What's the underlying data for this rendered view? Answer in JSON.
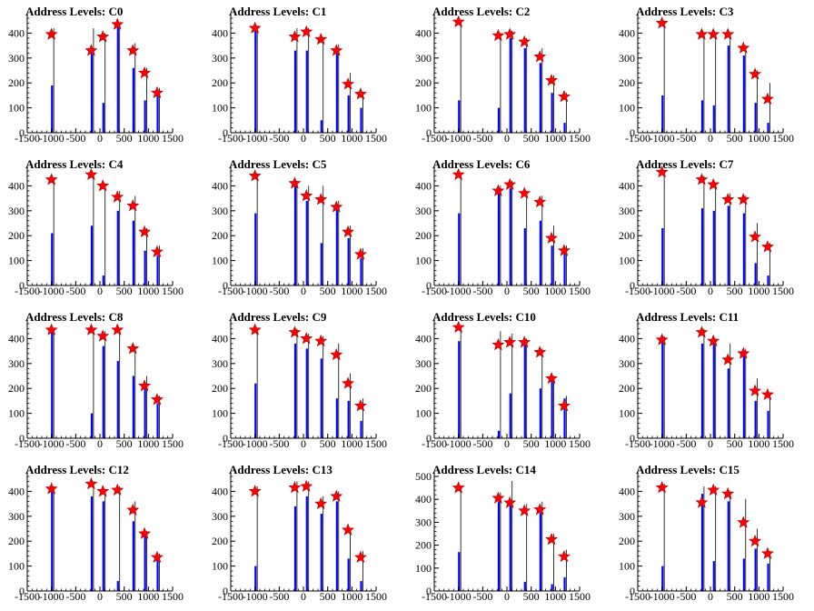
{
  "chart_data": [
    {
      "type": "bar",
      "title": "Address Levels: C0",
      "xlim": [
        -1500,
        1500
      ],
      "ylim": [
        0,
        460
      ],
      "xticks": [
        -1500,
        -1000,
        -500,
        0,
        500,
        1000,
        1500
      ],
      "yticks": [
        0,
        100,
        200,
        300,
        400
      ],
      "xtick_labels": [
        "-1500",
        "-1000",
        "-500",
        "0",
        "500",
        "1000",
        "1500"
      ],
      "ytick_labels": [
        "0",
        "100",
        "200",
        "300",
        "400"
      ],
      "peaks_x": [
        -1000,
        -180,
        60,
        360,
        680,
        920,
        1180
      ],
      "bar_values": [
        190,
        330,
        120,
        430,
        260,
        130,
        170
      ],
      "line_values": [
        420,
        420,
        400,
        440,
        360,
        260,
        180
      ],
      "marker_values": [
        395,
        330,
        385,
        435,
        330,
        240,
        160
      ]
    },
    {
      "type": "bar",
      "title": "Address Levels: C1",
      "xlim": [
        -1500,
        1500
      ],
      "ylim": [
        0,
        460
      ],
      "xticks": [
        -1500,
        -1000,
        -500,
        0,
        500,
        1000,
        1500
      ],
      "yticks": [
        0,
        100,
        200,
        300,
        400
      ],
      "xtick_labels": [
        "-1500",
        "-1000",
        "-500",
        "0",
        "500",
        "1000",
        "1500"
      ],
      "ytick_labels": [
        "0",
        "100",
        "200",
        "300",
        "400"
      ],
      "peaks_x": [
        -1000,
        -180,
        60,
        360,
        680,
        920,
        1180
      ],
      "bar_values": [
        420,
        330,
        330,
        50,
        340,
        150,
        100
      ],
      "line_values": [
        430,
        420,
        420,
        380,
        355,
        240,
        160
      ],
      "marker_values": [
        420,
        385,
        405,
        375,
        330,
        195,
        155
      ]
    },
    {
      "type": "bar",
      "title": "Address Levels: C2",
      "xlim": [
        -1500,
        1500
      ],
      "ylim": [
        0,
        460
      ],
      "xticks": [
        -1500,
        -1000,
        -500,
        0,
        500,
        1000,
        1500
      ],
      "yticks": [
        0,
        100,
        200,
        300,
        400
      ],
      "xtick_labels": [
        "-1500",
        "-1000",
        "-500",
        "0",
        "500",
        "1000",
        "1500"
      ],
      "ytick_labels": [
        "0",
        "100",
        "200",
        "300",
        "400"
      ],
      "peaks_x": [
        -1000,
        -180,
        60,
        360,
        680,
        920,
        1180
      ],
      "bar_values": [
        130,
        100,
        380,
        340,
        280,
        160,
        40
      ],
      "line_values": [
        450,
        400,
        410,
        380,
        340,
        230,
        160
      ],
      "marker_values": [
        445,
        390,
        395,
        365,
        305,
        210,
        145
      ]
    },
    {
      "type": "bar",
      "title": "Address Levels: C3",
      "xlim": [
        -1500,
        1500
      ],
      "ylim": [
        0,
        460
      ],
      "xticks": [
        -1500,
        -1000,
        -500,
        0,
        500,
        1000,
        1500
      ],
      "yticks": [
        0,
        100,
        200,
        300,
        400
      ],
      "xtick_labels": [
        "-1500",
        "-1000",
        "-500",
        "0",
        "500",
        "1000",
        "1500"
      ],
      "ytick_labels": [
        "0",
        "100",
        "200",
        "300",
        "400"
      ],
      "peaks_x": [
        -1000,
        -180,
        60,
        360,
        680,
        920,
        1180
      ],
      "bar_values": [
        150,
        130,
        110,
        350,
        310,
        120,
        40
      ],
      "line_values": [
        450,
        400,
        400,
        400,
        350,
        250,
        200
      ],
      "marker_values": [
        440,
        395,
        395,
        395,
        340,
        235,
        135
      ]
    },
    {
      "type": "bar",
      "title": "Address Levels: C4",
      "xlim": [
        -1500,
        1500
      ],
      "ylim": [
        0,
        460
      ],
      "xticks": [
        -1500,
        -1000,
        -500,
        0,
        500,
        1000,
        1500
      ],
      "yticks": [
        0,
        100,
        200,
        300,
        400
      ],
      "xtick_labels": [
        "-1500",
        "-1000",
        "-500",
        "0",
        "500",
        "1000",
        "1500"
      ],
      "ytick_labels": [
        "0",
        "100",
        "200",
        "300",
        "400"
      ],
      "peaks_x": [
        -1000,
        -180,
        60,
        360,
        680,
        920,
        1180
      ],
      "bar_values": [
        210,
        240,
        40,
        300,
        260,
        140,
        120
      ],
      "line_values": [
        430,
        450,
        410,
        380,
        360,
        230,
        160
      ],
      "marker_values": [
        425,
        445,
        400,
        355,
        320,
        215,
        135
      ]
    },
    {
      "type": "bar",
      "title": "Address Levels: C5",
      "xlim": [
        -1500,
        1500
      ],
      "ylim": [
        0,
        460
      ],
      "xticks": [
        -1500,
        -1000,
        -500,
        0,
        500,
        1000,
        1500
      ],
      "yticks": [
        0,
        100,
        200,
        300,
        400
      ],
      "xtick_labels": [
        "-1500",
        "-1000",
        "-500",
        "0",
        "500",
        "1000",
        "1500"
      ],
      "ytick_labels": [
        "0",
        "100",
        "200",
        "300",
        "400"
      ],
      "peaks_x": [
        -1000,
        -180,
        60,
        360,
        680,
        920,
        1180
      ],
      "bar_values": [
        290,
        400,
        340,
        170,
        310,
        190,
        110
      ],
      "line_values": [
        450,
        420,
        400,
        400,
        340,
        240,
        150
      ],
      "marker_values": [
        440,
        410,
        360,
        345,
        315,
        215,
        125
      ]
    },
    {
      "type": "bar",
      "title": "Address Levels: C6",
      "xlim": [
        -1500,
        1500
      ],
      "ylim": [
        0,
        460
      ],
      "xticks": [
        -1500,
        -1000,
        -500,
        0,
        500,
        1000,
        1500
      ],
      "yticks": [
        0,
        100,
        200,
        300,
        400
      ],
      "xtick_labels": [
        "-1500",
        "-1000",
        "-500",
        "0",
        "500",
        "1000",
        "1500"
      ],
      "ytick_labels": [
        "0",
        "100",
        "200",
        "300",
        "400"
      ],
      "peaks_x": [
        -1000,
        -180,
        60,
        360,
        680,
        920,
        1180
      ],
      "bar_values": [
        290,
        370,
        390,
        230,
        260,
        160,
        130
      ],
      "line_values": [
        450,
        400,
        420,
        380,
        360,
        240,
        160
      ],
      "marker_values": [
        445,
        380,
        405,
        370,
        335,
        190,
        140
      ]
    },
    {
      "type": "bar",
      "title": "Address Levels: C7",
      "xlim": [
        -1500,
        1500
      ],
      "ylim": [
        0,
        460
      ],
      "xticks": [
        -1500,
        -1000,
        -500,
        0,
        500,
        1000,
        1500
      ],
      "yticks": [
        0,
        100,
        200,
        300,
        400
      ],
      "xtick_labels": [
        "-1500",
        "-1000",
        "-500",
        "0",
        "500",
        "1000",
        "1500"
      ],
      "ytick_labels": [
        "0",
        "100",
        "200",
        "300",
        "400"
      ],
      "peaks_x": [
        -1000,
        -180,
        60,
        360,
        680,
        920,
        1180
      ],
      "bar_values": [
        230,
        310,
        300,
        320,
        290,
        90,
        40
      ],
      "line_values": [
        460,
        440,
        410,
        370,
        360,
        250,
        170
      ],
      "marker_values": [
        455,
        425,
        405,
        345,
        345,
        195,
        155
      ]
    },
    {
      "type": "bar",
      "title": "Address Levels: C8",
      "xlim": [
        -1500,
        1500
      ],
      "ylim": [
        0,
        460
      ],
      "xticks": [
        -1500,
        -1000,
        -500,
        0,
        500,
        1000,
        1500
      ],
      "yticks": [
        0,
        100,
        200,
        300,
        400
      ],
      "xtick_labels": [
        "-1500",
        "-1000",
        "-500",
        "0",
        "500",
        "1000",
        "1500"
      ],
      "ytick_labels": [
        "0",
        "100",
        "200",
        "300",
        "400"
      ],
      "peaks_x": [
        -1000,
        -180,
        60,
        360,
        680,
        920,
        1180
      ],
      "bar_values": [
        440,
        100,
        370,
        310,
        250,
        210,
        140
      ],
      "line_values": [
        440,
        440,
        430,
        430,
        360,
        250,
        170
      ],
      "marker_values": [
        435,
        435,
        410,
        435,
        360,
        210,
        155
      ]
    },
    {
      "type": "bar",
      "title": "Address Levels: C9",
      "xlim": [
        -1500,
        1500
      ],
      "ylim": [
        0,
        460
      ],
      "xticks": [
        -1500,
        -1000,
        -500,
        0,
        500,
        1000,
        1500
      ],
      "yticks": [
        0,
        100,
        200,
        300,
        400
      ],
      "xtick_labels": [
        "-1500",
        "-1000",
        "-500",
        "0",
        "500",
        "1000",
        "1500"
      ],
      "ytick_labels": [
        "0",
        "100",
        "200",
        "300",
        "400"
      ],
      "peaks_x": [
        -1000,
        -180,
        60,
        360,
        680,
        920,
        1180
      ],
      "bar_values": [
        220,
        380,
        360,
        320,
        160,
        150,
        70
      ],
      "line_values": [
        440,
        440,
        420,
        410,
        380,
        260,
        160
      ],
      "marker_values": [
        435,
        425,
        400,
        390,
        335,
        220,
        130
      ]
    },
    {
      "type": "bar",
      "title": "Address Levels: C10",
      "xlim": [
        -1500,
        1500
      ],
      "ylim": [
        0,
        460
      ],
      "xticks": [
        -1500,
        -1000,
        -500,
        0,
        500,
        1000,
        1500
      ],
      "yticks": [
        0,
        100,
        200,
        300,
        400
      ],
      "xtick_labels": [
        "-1500",
        "-1000",
        "-500",
        "0",
        "500",
        "1000",
        "1500"
      ],
      "ytick_labels": [
        "0",
        "100",
        "200",
        "300",
        "400"
      ],
      "peaks_x": [
        -1000,
        -180,
        60,
        360,
        680,
        920,
        1180
      ],
      "bar_values": [
        390,
        30,
        180,
        390,
        200,
        240,
        160
      ],
      "line_values": [
        450,
        430,
        420,
        400,
        360,
        250,
        170
      ],
      "marker_values": [
        445,
        375,
        385,
        385,
        345,
        240,
        130
      ]
    },
    {
      "type": "bar",
      "title": "Address Levels: C11",
      "xlim": [
        -1500,
        1500
      ],
      "ylim": [
        0,
        460
      ],
      "xticks": [
        -1500,
        -1000,
        -500,
        0,
        500,
        1000,
        1500
      ],
      "yticks": [
        0,
        100,
        200,
        300,
        400
      ],
      "xtick_labels": [
        "-1500",
        "-1000",
        "-500",
        "0",
        "500",
        "1000",
        "1500"
      ],
      "ytick_labels": [
        "0",
        "100",
        "200",
        "300",
        "400"
      ],
      "peaks_x": [
        -1000,
        -180,
        60,
        360,
        680,
        920,
        1180
      ],
      "bar_values": [
        400,
        380,
        390,
        280,
        330,
        150,
        110
      ],
      "line_values": [
        410,
        440,
        400,
        380,
        360,
        240,
        180
      ],
      "marker_values": [
        395,
        425,
        390,
        315,
        340,
        190,
        175
      ]
    },
    {
      "type": "bar",
      "title": "Address Levels: C12",
      "xlim": [
        -1500,
        1500
      ],
      "ylim": [
        0,
        460
      ],
      "xticks": [
        -1500,
        -1000,
        -500,
        0,
        500,
        1000,
        1500
      ],
      "yticks": [
        0,
        100,
        200,
        300,
        400
      ],
      "xtick_labels": [
        "-1500",
        "-1000",
        "-500",
        "0",
        "500",
        "1000",
        "1500"
      ],
      "ytick_labels": [
        "0",
        "100",
        "200",
        "300",
        "400"
      ],
      "peaks_x": [
        -1000,
        -180,
        60,
        360,
        680,
        920,
        1180
      ],
      "bar_values": [
        410,
        380,
        360,
        40,
        280,
        230,
        140
      ],
      "line_values": [
        420,
        440,
        410,
        420,
        360,
        240,
        150
      ],
      "marker_values": [
        410,
        430,
        400,
        405,
        325,
        230,
        135
      ]
    },
    {
      "type": "bar",
      "title": "Address Levels: C13",
      "xlim": [
        -1500,
        1500
      ],
      "ylim": [
        0,
        460
      ],
      "xticks": [
        -1500,
        -1000,
        -500,
        0,
        500,
        1000,
        1500
      ],
      "yticks": [
        0,
        100,
        200,
        300,
        400
      ],
      "xtick_labels": [
        "-1500",
        "-1000",
        "-500",
        "0",
        "500",
        "1000",
        "1500"
      ],
      "ytick_labels": [
        "0",
        "100",
        "200",
        "300",
        "400"
      ],
      "peaks_x": [
        -1000,
        -180,
        60,
        360,
        680,
        920,
        1180
      ],
      "bar_values": [
        100,
        340,
        380,
        310,
        360,
        130,
        40
      ],
      "line_values": [
        420,
        440,
        440,
        380,
        400,
        250,
        160
      ],
      "marker_values": [
        400,
        415,
        420,
        350,
        380,
        245,
        135
      ]
    },
    {
      "type": "bar",
      "title": "Address Levels: C14",
      "xlim": [
        -1500,
        1500
      ],
      "ylim": [
        0,
        500
      ],
      "xticks": [
        -1500,
        -1000,
        -500,
        0,
        500,
        1000,
        1500
      ],
      "yticks": [
        0,
        100,
        200,
        300,
        400,
        500
      ],
      "xtick_labels": [
        "-1500",
        "-1000",
        "-500",
        "0",
        "500",
        "1000",
        "1500"
      ],
      "ytick_labels": [
        "0",
        "100",
        "200",
        "300",
        "400",
        "500"
      ],
      "peaks_x": [
        -1000,
        -180,
        60,
        360,
        680,
        920,
        1180
      ],
      "bar_values": [
        170,
        390,
        380,
        40,
        340,
        30,
        60
      ],
      "line_values": [
        460,
        430,
        480,
        380,
        390,
        250,
        180
      ],
      "marker_values": [
        450,
        405,
        385,
        350,
        355,
        225,
        150
      ]
    },
    {
      "type": "bar",
      "title": "Address Levels: C15",
      "xlim": [
        -1500,
        1500
      ],
      "ylim": [
        0,
        460
      ],
      "xticks": [
        -1500,
        -1000,
        -500,
        0,
        500,
        1000,
        1500
      ],
      "yticks": [
        0,
        100,
        200,
        300,
        400
      ],
      "xtick_labels": [
        "-1500",
        "-1000",
        "-500",
        "0",
        "500",
        "1000",
        "1500"
      ],
      "ytick_labels": [
        "0",
        "100",
        "200",
        "300",
        "400"
      ],
      "peaks_x": [
        -1000,
        -180,
        60,
        360,
        680,
        920,
        1180
      ],
      "bar_values": [
        100,
        390,
        120,
        360,
        130,
        170,
        110
      ],
      "line_values": [
        430,
        420,
        420,
        400,
        370,
        250,
        160
      ],
      "marker_values": [
        415,
        355,
        405,
        390,
        275,
        200,
        150
      ]
    }
  ],
  "colors": {
    "bar": "#0000ff",
    "line": "#000000",
    "marker_fill": "#ff0000",
    "marker_stroke": "#aa0000",
    "axis": "#000000"
  },
  "marker_shape": "star"
}
